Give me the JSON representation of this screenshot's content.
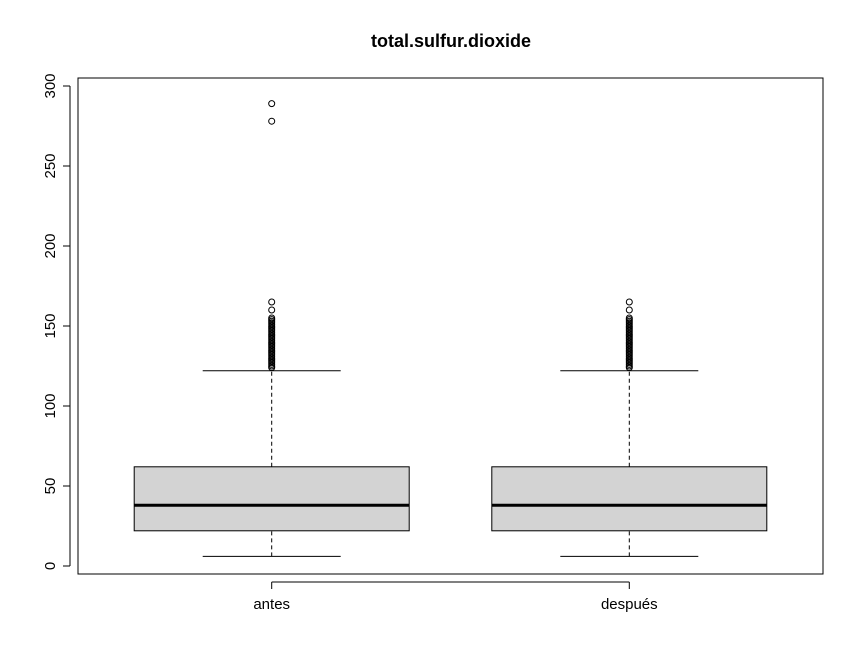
{
  "chart_data": {
    "type": "boxplot",
    "title": "total.sulfur.dioxide",
    "xlabel": "",
    "ylabel": "",
    "categories": [
      "antes",
      "después"
    ],
    "ylim": [
      -5,
      305
    ],
    "y_ticks": [
      "0",
      "50",
      "100",
      "150",
      "200",
      "250",
      "300"
    ],
    "grid": false,
    "box_fill": "#d3d3d3",
    "boxes": [
      {
        "label": "antes",
        "whisker_low": 6,
        "q1": 22,
        "median": 38,
        "q3": 62,
        "whisker_high": 122,
        "outliers": [
          124,
          125,
          126,
          127,
          128,
          129,
          130,
          131,
          132,
          133,
          134,
          135,
          136,
          137,
          138,
          139,
          140,
          141,
          142,
          143,
          144,
          145,
          146,
          147,
          148,
          149,
          150,
          151,
          152,
          153,
          154,
          155,
          160,
          165,
          278,
          289
        ]
      },
      {
        "label": "después",
        "whisker_low": 6,
        "q1": 22,
        "median": 38,
        "q3": 62,
        "whisker_high": 122,
        "outliers": [
          124,
          125,
          126,
          127,
          128,
          129,
          130,
          131,
          132,
          133,
          134,
          135,
          136,
          137,
          138,
          139,
          140,
          141,
          142,
          143,
          144,
          145,
          146,
          147,
          148,
          149,
          150,
          151,
          152,
          153,
          154,
          155,
          160,
          165
        ]
      }
    ]
  }
}
